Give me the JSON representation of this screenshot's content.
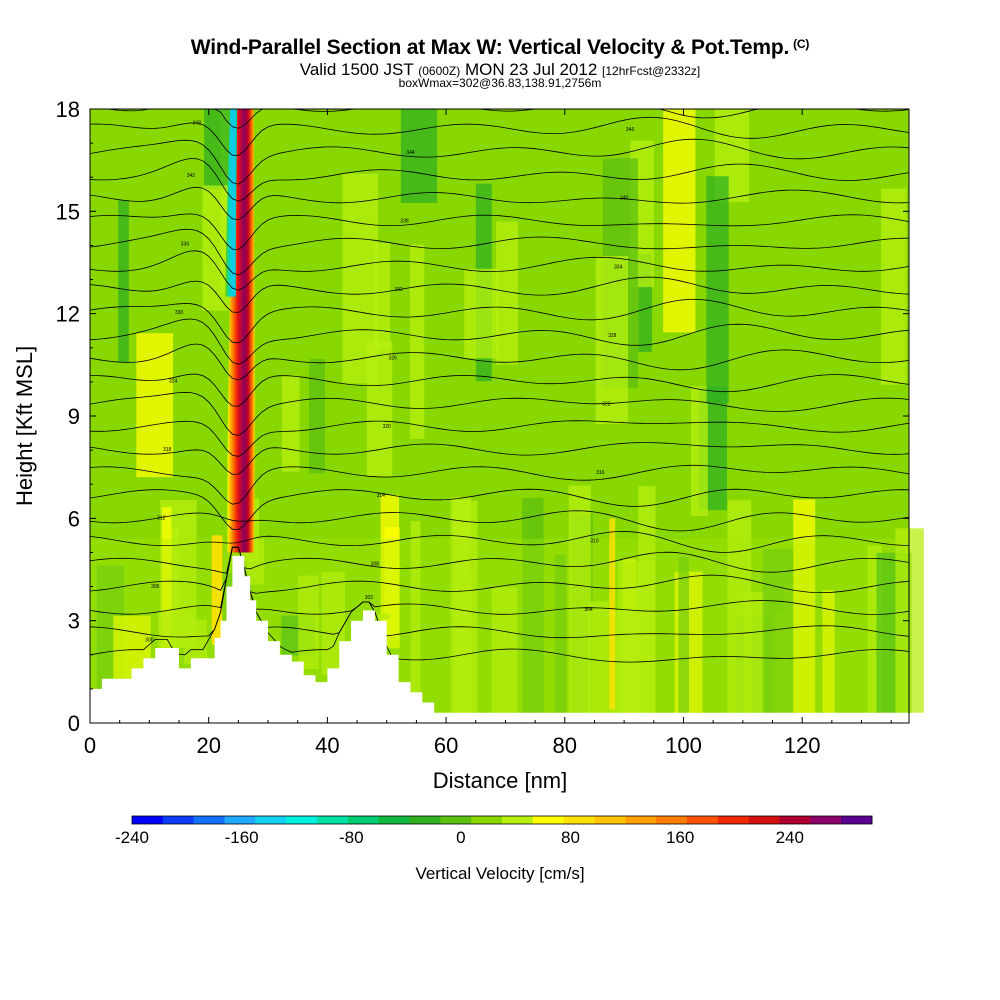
{
  "title": {
    "main": "Wind-Parallel Section at Max W: Vertical Velocity & Pot.Temp.",
    "copyright": "(C)",
    "valid_prefix": "Valid 1500 JST",
    "valid_utc": "(0600Z)",
    "valid_date": "MON 23 Jul 2012",
    "forecast": "[12hrFcst@2332z]",
    "subtitle": "boxWmax=302@36.83,138.91,2756m"
  },
  "chart_data": {
    "type": "heatmap",
    "xlabel": "Distance [nm]",
    "ylabel": "Height [Kft MSL]",
    "xlim": [
      0,
      138
    ],
    "ylim": [
      0,
      18
    ],
    "x_ticks": [
      0,
      20,
      40,
      60,
      80,
      100,
      120
    ],
    "y_ticks": [
      0,
      3,
      6,
      9,
      12,
      15,
      18
    ],
    "colorbar": {
      "label": "Vertical Velocity [cm/s]",
      "range": [
        -240,
        300
      ],
      "tick_values": [
        -240,
        -160,
        -80,
        0,
        80,
        160,
        240
      ],
      "tick_labels": [
        "-240",
        "-160",
        "-80",
        "0",
        "80",
        "160",
        "240"
      ],
      "colors": [
        "#0000ff",
        "#0a3cff",
        "#1470ff",
        "#1ea8ff",
        "#14d2f0",
        "#00f0e0",
        "#00e0a8",
        "#00cc70",
        "#10b840",
        "#30b020",
        "#5cc010",
        "#88d800",
        "#b8f010",
        "#ffff00",
        "#ffe100",
        "#ffc400",
        "#ffa000",
        "#ff7c00",
        "#ff5200",
        "#f02800",
        "#d21010",
        "#b00030",
        "#8c006c",
        "#5a0090"
      ]
    },
    "updraft_core": {
      "x": 25,
      "max_w": 302
    },
    "downdraft_core": {
      "x": 24,
      "min_w": -200
    },
    "terrain_profile": {
      "x": [
        0,
        2,
        2,
        5,
        7,
        9,
        11,
        13,
        15,
        17,
        19,
        21,
        22,
        23,
        24,
        25,
        26,
        27,
        28,
        30,
        32,
        34,
        36,
        38,
        40,
        42,
        44,
        46,
        47,
        48,
        50,
        52,
        54,
        56,
        58,
        60,
        62,
        80,
        100,
        110,
        115,
        120,
        130,
        138
      ],
      "height": [
        1.0,
        1.0,
        1.3,
        1.3,
        1.6,
        1.9,
        2.2,
        2.2,
        1.6,
        1.9,
        1.9,
        2.5,
        3.0,
        4.0,
        4.9,
        4.9,
        4.3,
        3.6,
        3.0,
        2.4,
        2.0,
        1.8,
        1.4,
        1.2,
        1.6,
        2.4,
        3.0,
        3.3,
        3.3,
        3.0,
        2.0,
        1.2,
        0.9,
        0.6,
        0.3,
        0.3,
        0.3,
        0.3,
        0.3,
        0.3,
        0.3,
        0.3,
        0.3,
        0.3
      ]
    },
    "isentropes_kelvin": [
      300,
      302,
      304,
      306,
      308,
      310,
      312,
      314,
      316,
      318,
      320,
      322,
      324,
      326,
      328,
      330,
      332,
      334,
      336,
      338,
      340,
      342,
      344,
      346,
      348
    ]
  }
}
